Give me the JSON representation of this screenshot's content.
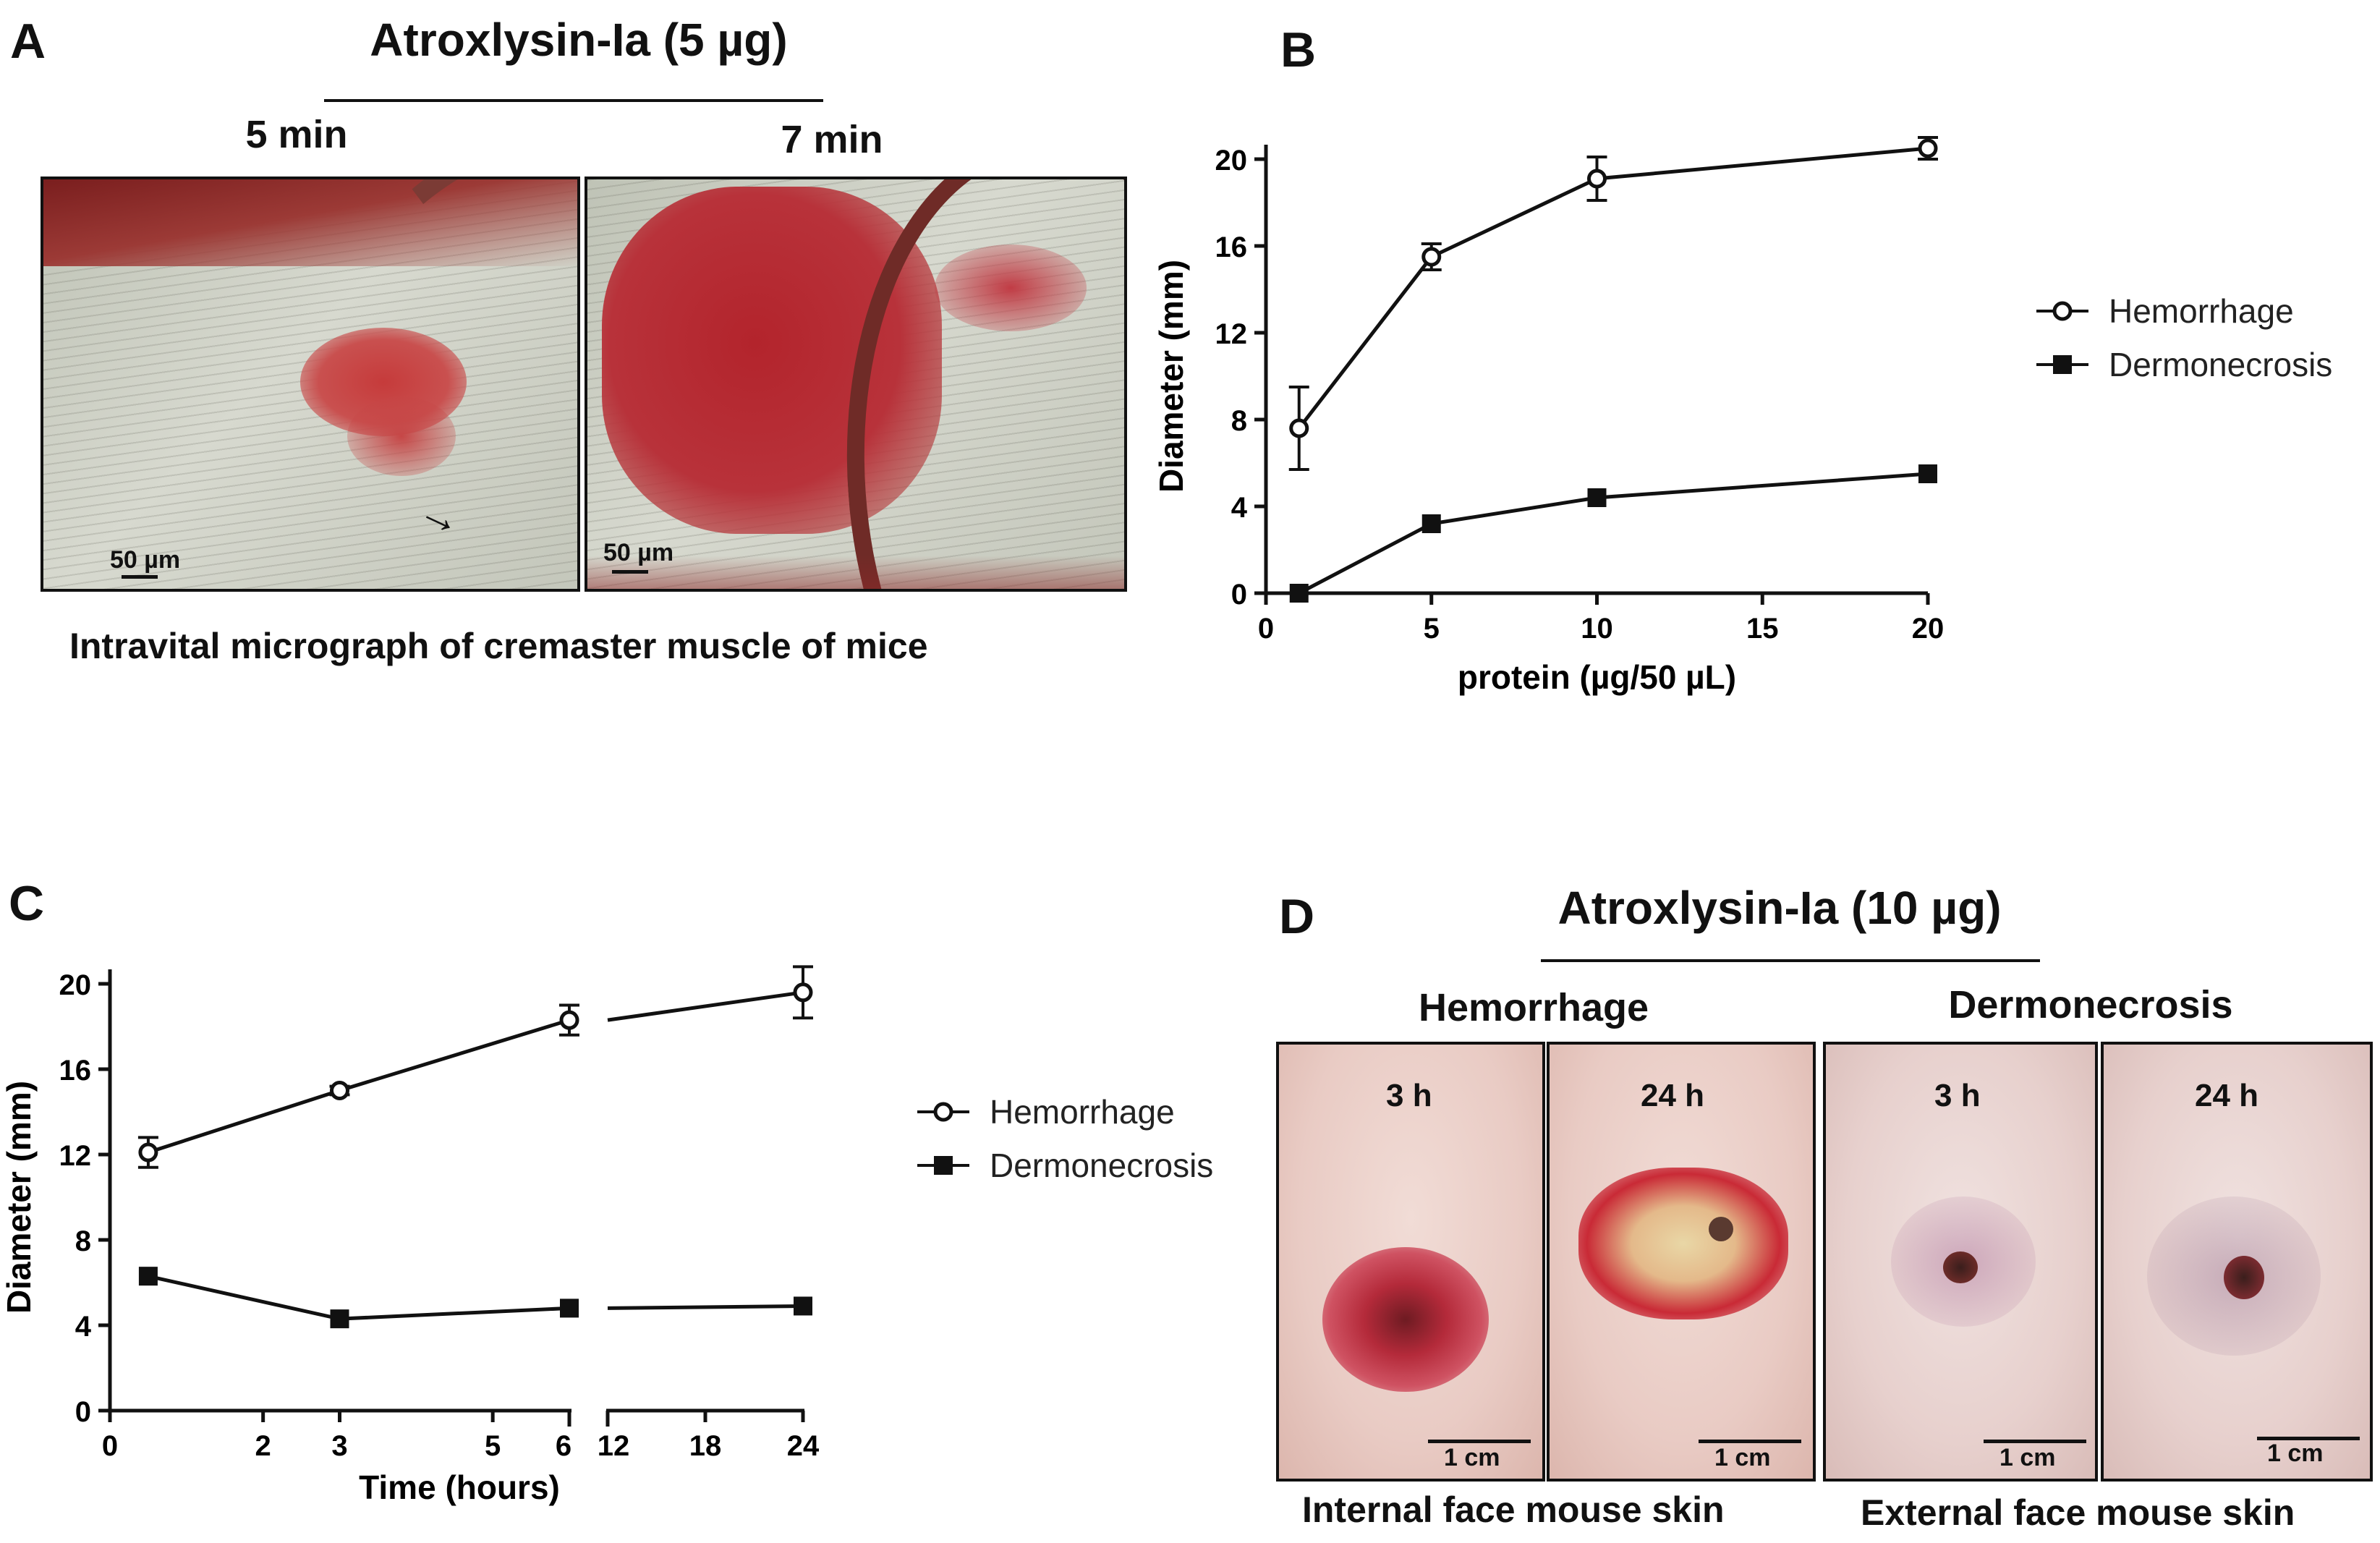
{
  "panels": {
    "A": {
      "label": "A",
      "title": "Atroxlysin-Ia (5 µg)",
      "time_left": "5 min",
      "time_right": "7 min",
      "scale_left": "50 µm",
      "scale_right": "50 µm",
      "caption": "Intravital micrograph of cremaster muscle of mice"
    },
    "B": {
      "label": "B"
    },
    "C": {
      "label": "C"
    },
    "D": {
      "label": "D",
      "title": "Atroxlysin-Ia (10 µg)",
      "group_left": "Hemorrhage",
      "group_right": "Dermonecrosis",
      "photos": [
        {
          "time": "3 h",
          "scale": "1 cm"
        },
        {
          "time": "24 h",
          "scale": "1 cm"
        },
        {
          "time": "3 h",
          "scale": "1 cm"
        },
        {
          "time": "24 h",
          "scale": "1 cm"
        }
      ],
      "caption_left": "Internal face mouse skin",
      "caption_right": "External face mouse skin"
    }
  },
  "chart_data": [
    {
      "type": "line",
      "panel": "B",
      "xlabel": "protein (µg/50 µL)",
      "ylabel": "Diameter (mm)",
      "xlim": [
        0,
        20
      ],
      "ylim": [
        0,
        20
      ],
      "xticks": [
        "0",
        "5",
        "10",
        "15",
        "20"
      ],
      "yticks": [
        "0",
        "4",
        "8",
        "12",
        "16",
        "20"
      ],
      "grid": false,
      "legend": "right",
      "x": [
        1,
        5,
        10,
        20
      ],
      "series": [
        {
          "name": "Hemorrhage",
          "marker": "open-circle",
          "values": [
            7.6,
            15.5,
            19.1,
            20.5
          ],
          "error": [
            1.9,
            0.6,
            1.0,
            0.5
          ]
        },
        {
          "name": "Dermonecrosis",
          "marker": "filled-square",
          "values": [
            0,
            3.2,
            4.4,
            5.5
          ],
          "error": [
            0,
            0,
            0,
            0
          ]
        }
      ]
    },
    {
      "type": "line",
      "panel": "C",
      "xlabel": "Time (hours)",
      "ylabel": "Diameter (mm)",
      "ylim": [
        0,
        20
      ],
      "xticks": [
        "0",
        "2",
        "3",
        "5",
        "6",
        "12",
        "18",
        "24"
      ],
      "yticks": [
        "0",
        "4",
        "8",
        "12",
        "16",
        "20"
      ],
      "axis_break": true,
      "grid": false,
      "legend": "right",
      "x": [
        0.5,
        3,
        6,
        24
      ],
      "series": [
        {
          "name": "Hemorrhage",
          "marker": "open-circle",
          "values": [
            12.1,
            15.0,
            18.3,
            19.6
          ],
          "error": [
            0.7,
            0.2,
            0.7,
            1.2
          ]
        },
        {
          "name": "Dermonecrosis",
          "marker": "filled-square",
          "values": [
            6.3,
            4.3,
            4.8,
            4.9
          ],
          "error": [
            0,
            0,
            0,
            0
          ]
        }
      ]
    }
  ]
}
